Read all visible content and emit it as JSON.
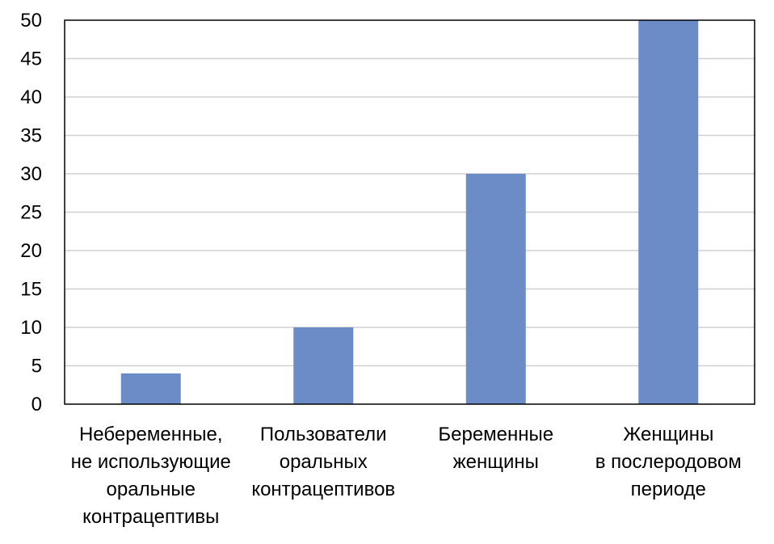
{
  "colors": {
    "bar": "#6b8cc7",
    "grid": "#d0d0d0",
    "frame": "#000000"
  },
  "chart_data": {
    "type": "bar",
    "categories": [
      [
        "Небеременные,",
        "не использующие",
        "оральные",
        "контрацептивы"
      ],
      [
        "Пользователи",
        "оральных",
        "контрацептивов"
      ],
      [
        "Беременные",
        "женщины"
      ],
      [
        "Женщины",
        "в послеродовом",
        "периоде"
      ]
    ],
    "values": [
      4,
      10,
      30,
      50
    ],
    "yticks": [
      "0",
      "5",
      "10",
      "15",
      "20",
      "25",
      "30",
      "35",
      "40",
      "45",
      "50"
    ],
    "ylim": [
      0,
      50
    ],
    "grid": true,
    "title": "",
    "xlabel": "",
    "ylabel": ""
  }
}
